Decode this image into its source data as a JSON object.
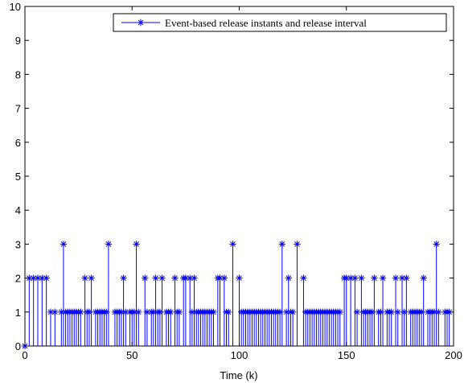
{
  "chart_data": {
    "type": "stem",
    "title": "",
    "xlabel": "Time (k)",
    "ylabel": "",
    "xlim": [
      0,
      200
    ],
    "ylim": [
      0,
      10
    ],
    "xticks": [
      "0",
      "50",
      "100",
      "150",
      "200"
    ],
    "yticks": [
      "0",
      "1",
      "2",
      "3",
      "4",
      "5",
      "6",
      "7",
      "8",
      "9",
      "10"
    ],
    "grid": false,
    "legend_placement": "top-right",
    "series_color": "#0000ff",
    "marker": "asterisk",
    "series": [
      {
        "name": "Event-based release instants and release interval",
        "x": [
          0,
          2,
          4,
          6,
          8,
          10,
          12,
          14,
          17,
          18,
          19,
          20,
          21,
          22,
          23,
          24,
          25,
          26,
          28,
          29,
          30,
          31,
          33,
          34,
          35,
          36,
          37,
          38,
          39,
          42,
          43,
          44,
          45,
          46,
          47,
          49,
          50,
          51,
          52,
          53,
          56,
          57,
          59,
          60,
          61,
          62,
          63,
          64,
          66,
          67,
          68,
          70,
          71,
          72,
          74,
          75,
          77,
          78,
          79,
          80,
          81,
          82,
          83,
          84,
          85,
          86,
          87,
          88,
          90,
          91,
          93,
          94,
          95,
          97,
          100,
          101,
          102,
          103,
          104,
          105,
          106,
          107,
          108,
          109,
          110,
          111,
          112,
          113,
          114,
          115,
          116,
          117,
          118,
          119,
          120,
          122,
          123,
          124,
          125,
          127,
          130,
          131,
          132,
          133,
          134,
          135,
          136,
          137,
          138,
          139,
          140,
          141,
          142,
          143,
          144,
          145,
          146,
          147,
          149,
          150,
          152,
          154,
          155,
          157,
          158,
          159,
          160,
          161,
          162,
          163,
          165,
          166,
          167,
          169,
          170,
          171,
          173,
          174,
          176,
          177,
          178,
          180,
          181,
          182,
          183,
          184,
          185,
          186,
          188,
          189,
          190,
          191,
          192,
          193,
          196,
          197,
          198
        ],
        "values": [
          0,
          2,
          2,
          2,
          2,
          2,
          1,
          1,
          1,
          3,
          1,
          1,
          1,
          1,
          1,
          1,
          1,
          1,
          2,
          1,
          1,
          2,
          1,
          1,
          1,
          1,
          1,
          1,
          3,
          1,
          1,
          1,
          1,
          2,
          1,
          1,
          1,
          1,
          3,
          1,
          2,
          1,
          1,
          1,
          2,
          1,
          1,
          2,
          1,
          1,
          1,
          2,
          1,
          1,
          2,
          2,
          2,
          1,
          2,
          1,
          1,
          1,
          1,
          1,
          1,
          1,
          1,
          1,
          2,
          2,
          2,
          1,
          1,
          3,
          2,
          1,
          1,
          1,
          1,
          1,
          1,
          1,
          1,
          1,
          1,
          1,
          1,
          1,
          1,
          1,
          1,
          1,
          1,
          1,
          3,
          1,
          2,
          1,
          1,
          3,
          2,
          1,
          1,
          1,
          1,
          1,
          1,
          1,
          1,
          1,
          1,
          1,
          1,
          1,
          1,
          1,
          1,
          1,
          2,
          2,
          2,
          2,
          1,
          2,
          1,
          1,
          1,
          1,
          1,
          2,
          1,
          1,
          2,
          1,
          1,
          1,
          2,
          1,
          2,
          1,
          2,
          1,
          1,
          1,
          1,
          1,
          1,
          2,
          1,
          1,
          1,
          1,
          3,
          1,
          1,
          1,
          1
        ]
      }
    ]
  }
}
